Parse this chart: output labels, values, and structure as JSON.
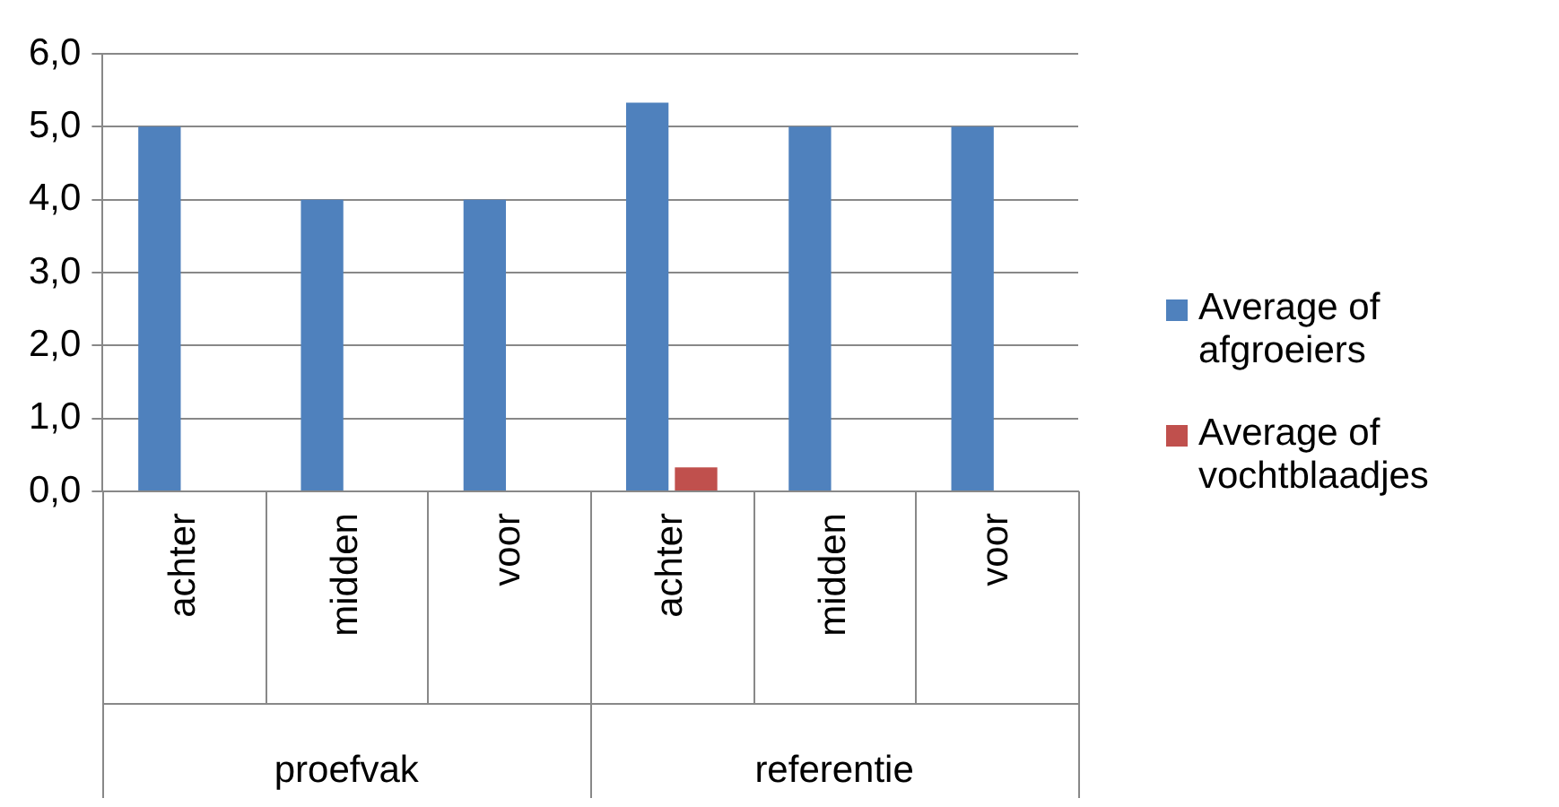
{
  "chart_data": {
    "type": "bar",
    "categories": [
      "achter",
      "midden",
      "voor",
      "achter",
      "midden",
      "voor"
    ],
    "series": [
      {
        "name": "Average of afgroeiers",
        "color": "#4f81bd",
        "values": [
          5,
          4,
          4,
          5.33,
          5,
          5
        ]
      },
      {
        "name": "Average of vochtblaadjes",
        "color": "#c0504d",
        "values": [
          0,
          0,
          0,
          0.33,
          0,
          0
        ]
      }
    ],
    "ylim": [
      0,
      6
    ],
    "yticks": [
      {
        "value": 0,
        "label": "0,0"
      },
      {
        "value": 1,
        "label": "1,0"
      },
      {
        "value": 2,
        "label": "2,0"
      },
      {
        "value": 3,
        "label": "3,0"
      },
      {
        "value": 4,
        "label": "4,0"
      },
      {
        "value": 5,
        "label": "5,0"
      },
      {
        "value": 6,
        "label": "6,0"
      }
    ],
    "grid": "y",
    "legend": "right",
    "annotations": [
      "proefvak",
      "referentie"
    ]
  }
}
